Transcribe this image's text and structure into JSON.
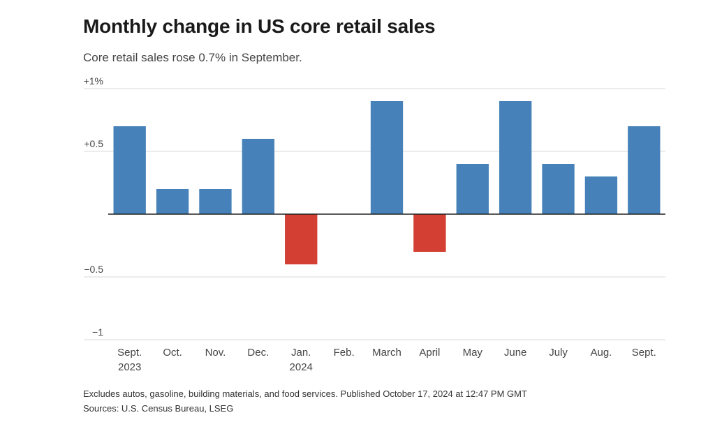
{
  "title": "Monthly change in US core retail sales",
  "subtitle": "Core retail sales rose 0.7% in September.",
  "footnote": "Excludes autos, gasoline, building materials, and food services. Published October 17, 2024 at 12:47 PM GMT",
  "source": "Sources: U.S. Census Bureau, LSEG",
  "chart_data": {
    "type": "bar",
    "categories": [
      [
        "Sept.",
        "2023"
      ],
      [
        "Oct."
      ],
      [
        "Nov."
      ],
      [
        "Dec."
      ],
      [
        "Jan.",
        "2024"
      ],
      [
        "Feb."
      ],
      [
        "March"
      ],
      [
        "April"
      ],
      [
        "May"
      ],
      [
        "June"
      ],
      [
        "July"
      ],
      [
        "Aug."
      ],
      [
        "Sept."
      ]
    ],
    "values": [
      0.7,
      0.2,
      0.2,
      0.6,
      -0.4,
      0.0,
      0.9,
      -0.3,
      0.4,
      0.9,
      0.4,
      0.3,
      0.7
    ],
    "ylim": [
      -1,
      1
    ],
    "yticks": [
      {
        "value": 1,
        "label": "+1%"
      },
      {
        "value": 0.5,
        "label": "+0.5"
      },
      {
        "value": 0,
        "label": ""
      },
      {
        "value": -0.5,
        "label": "−0.5"
      },
      {
        "value": -1,
        "label": "−1"
      }
    ],
    "colors": {
      "positive": "#4682b9",
      "negative": "#d33f33",
      "grid": "#d9d9d9",
      "zero": "#222222"
    },
    "grid": true
  }
}
